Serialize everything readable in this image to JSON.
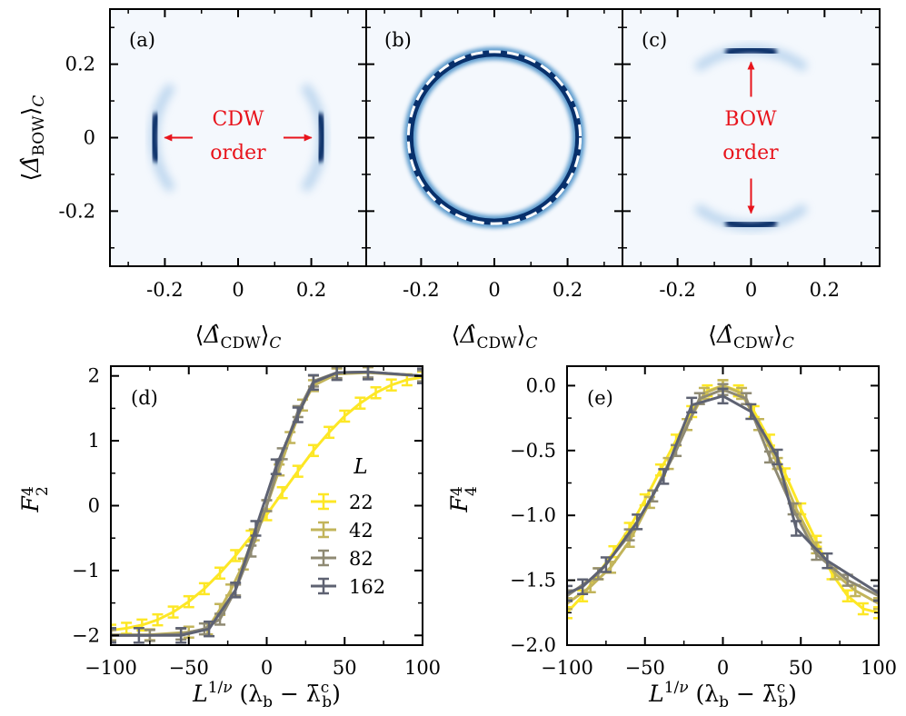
{
  "chart_data": [
    {
      "id": "a",
      "type": "heatmap",
      "panel_label": "(a)",
      "xlabel": "⟨Δ̂CDW⟩C",
      "ylabel": "⟨Δ̂BOW⟩C",
      "xlim": [
        -0.35,
        0.35
      ],
      "ylim": [
        -0.35,
        0.35
      ],
      "xticks": [
        "-0.2",
        "0",
        "0.2"
      ],
      "yticks": [
        "0.2",
        "0",
        "-0.2"
      ],
      "ring_radius": 0.23,
      "peaks_at_angles_deg": [
        0,
        180
      ],
      "annotation": [
        "CDW",
        "order"
      ],
      "colors": {
        "background": "#f4f8fd",
        "peak": "#08306b",
        "arrow": "#e8141c"
      }
    },
    {
      "id": "b",
      "type": "heatmap",
      "panel_label": "(b)",
      "xlabel": "⟨Δ̂CDW⟩C",
      "xlim": [
        -0.35,
        0.35
      ],
      "ylim": [
        -0.35,
        0.35
      ],
      "xticks": [
        "-0.2",
        "0",
        "0.2"
      ],
      "ring_radius": 0.23,
      "uniform_ring": true,
      "colors": {
        "background": "#f4f8fd",
        "peak": "#08306b",
        "guide": "#ffffff"
      }
    },
    {
      "id": "c",
      "type": "heatmap",
      "panel_label": "(c)",
      "xlabel": "⟨Δ̂CDW⟩C",
      "xlim": [
        -0.35,
        0.35
      ],
      "ylim": [
        -0.35,
        0.35
      ],
      "xticks": [
        "-0.2",
        "0",
        "0.2"
      ],
      "ring_radius": 0.24,
      "peaks_at_angles_deg": [
        90,
        270
      ],
      "annotation": [
        "BOW",
        "order"
      ],
      "colors": {
        "background": "#f4f8fd",
        "peak": "#08306b",
        "arrow": "#e8141c"
      }
    },
    {
      "id": "d",
      "type": "line",
      "panel_label": "(d)",
      "ylabel_main": "F",
      "ylabel_sub": "2",
      "ylabel_sup": "4",
      "xlabel": "L^{1/ν} (λb − λ̄cb)",
      "xlim": [
        -100,
        100
      ],
      "ylim": [
        -2.15,
        2.15
      ],
      "xticks": [
        -100,
        -50,
        0,
        50,
        100
      ],
      "yticks": [
        2,
        1,
        0,
        -1,
        -2
      ],
      "xtick_labels": [
        "−100",
        "−50",
        "0",
        "50",
        "100"
      ],
      "ytick_labels": [
        "2",
        "1",
        "0",
        "−1",
        "−2"
      ],
      "legend_title": "L",
      "series": [
        {
          "name": "22",
          "color": "#fde725",
          "x": [
            -100,
            -90,
            -80,
            -70,
            -60,
            -50,
            -40,
            -30,
            -20,
            -10,
            0,
            10,
            20,
            30,
            40,
            50,
            60,
            70,
            80,
            90,
            100
          ],
          "y": [
            -1.92,
            -1.89,
            -1.84,
            -1.76,
            -1.64,
            -1.48,
            -1.28,
            -1.04,
            -0.77,
            -0.47,
            -0.14,
            0.2,
            0.53,
            0.85,
            1.13,
            1.38,
            1.58,
            1.74,
            1.86,
            1.94,
            1.98
          ]
        },
        {
          "name": "42",
          "color": "#c2b45a",
          "x": [
            -100,
            -75,
            -50,
            -38,
            -30,
            -23,
            -15,
            -8,
            0,
            8,
            15,
            23,
            30,
            45,
            65,
            100
          ],
          "y": [
            -1.99,
            -1.99,
            -1.95,
            -1.9,
            -1.6,
            -1.3,
            -0.9,
            -0.45,
            0.0,
            0.55,
            1.05,
            1.55,
            1.85,
            2.03,
            2.05,
            2.0
          ]
        },
        {
          "name": "82",
          "color": "#8f8a73",
          "x": [
            -100,
            -75,
            -55,
            -40,
            -30,
            -20,
            -10,
            0,
            10,
            20,
            30,
            45,
            65,
            100
          ],
          "y": [
            -2.0,
            -2.0,
            -1.98,
            -1.9,
            -1.75,
            -1.3,
            -0.7,
            0.0,
            0.8,
            1.45,
            1.92,
            2.05,
            2.06,
            2.0
          ]
        },
        {
          "name": "162",
          "color": "#5e6272",
          "x": [
            -100,
            -82,
            -55,
            -37,
            -20,
            -7,
            6,
            20,
            30,
            45,
            65,
            100
          ],
          "y": [
            -2.0,
            -2.0,
            -2.0,
            -1.9,
            -1.3,
            -0.35,
            0.6,
            1.4,
            1.9,
            2.05,
            2.06,
            2.0
          ]
        }
      ]
    },
    {
      "id": "e",
      "type": "line",
      "panel_label": "(e)",
      "ylabel_main": "F",
      "ylabel_sub": "4",
      "ylabel_sup": "4",
      "xlabel": "L^{1/ν} (λb − λ̄cb)",
      "xlim": [
        -100,
        100
      ],
      "ylim": [
        -2.0,
        0.15
      ],
      "xticks": [
        -100,
        -50,
        0,
        50,
        100
      ],
      "yticks": [
        0.0,
        -0.5,
        -1.0,
        -1.5,
        -2.0
      ],
      "xtick_labels": [
        "−100",
        "−50",
        "0",
        "50",
        "100"
      ],
      "ytick_labels": [
        "0.0",
        "−0.5",
        "−1.0",
        "−1.5",
        "−2.0"
      ],
      "series": [
        {
          "name": "22",
          "color": "#fde725",
          "x": [
            -100,
            -90,
            -80,
            -70,
            -60,
            -50,
            -40,
            -30,
            -20,
            -10,
            0,
            10,
            20,
            30,
            40,
            50,
            60,
            70,
            80,
            90,
            100
          ],
          "y": [
            -1.75,
            -1.62,
            -1.45,
            -1.28,
            -1.1,
            -0.88,
            -0.65,
            -0.42,
            -0.2,
            -0.04,
            0.0,
            -0.04,
            -0.2,
            -0.42,
            -0.68,
            -0.95,
            -1.2,
            -1.45,
            -1.62,
            -1.72,
            -1.75
          ]
        },
        {
          "name": "42",
          "color": "#c2b45a",
          "x": [
            -100,
            -85,
            -72,
            -60,
            -47,
            -35,
            -23,
            -12,
            0,
            12,
            23,
            35,
            47,
            60,
            72,
            85,
            100
          ],
          "y": [
            -1.68,
            -1.55,
            -1.4,
            -1.2,
            -0.9,
            -0.6,
            -0.3,
            -0.06,
            0.0,
            -0.06,
            -0.3,
            -0.6,
            -0.95,
            -1.25,
            -1.45,
            -1.58,
            -1.68
          ]
        },
        {
          "name": "82",
          "color": "#8f8a73",
          "x": [
            -100,
            -80,
            -60,
            -45,
            -30,
            -15,
            0,
            15,
            30,
            45,
            60,
            80,
            100
          ],
          "y": [
            -1.62,
            -1.45,
            -1.15,
            -0.85,
            -0.5,
            -0.1,
            -0.03,
            -0.1,
            -0.55,
            -0.95,
            -1.3,
            -1.5,
            -1.62
          ]
        },
        {
          "name": "162",
          "color": "#5e6272",
          "x": [
            -100,
            -90,
            -75,
            -55,
            -38,
            -20,
            0,
            18,
            35,
            47,
            67,
            100
          ],
          "y": [
            -1.6,
            -1.55,
            -1.38,
            -1.05,
            -0.7,
            -0.15,
            -0.08,
            -0.2,
            -0.55,
            -1.1,
            -1.35,
            -1.6
          ]
        }
      ]
    }
  ]
}
